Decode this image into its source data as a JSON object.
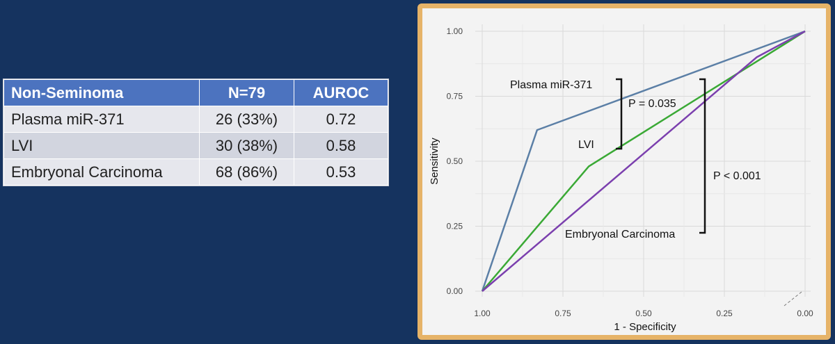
{
  "table": {
    "headers": [
      "Non-Seminoma",
      "N=79",
      "AUROC"
    ],
    "rows": [
      [
        "Plasma miR-371",
        "26 (33%)",
        "0.72"
      ],
      [
        "LVI",
        "30 (38%)",
        "0.58"
      ],
      [
        "Embryonal Carcinoma",
        "68 (86%)",
        "0.53"
      ]
    ]
  },
  "chart_data": {
    "type": "line",
    "title": "",
    "xlabel": "1 - Specificity",
    "ylabel": "Sensitivity",
    "x_reversed": true,
    "xlim": [
      1.0,
      0.0
    ],
    "ylim": [
      0.0,
      1.0
    ],
    "x_ticks": [
      "1.00",
      "0.75",
      "0.50",
      "0.25",
      "0.00"
    ],
    "y_ticks": [
      "0.00",
      "0.25",
      "0.50",
      "0.75",
      "1.00"
    ],
    "grid": true,
    "series": [
      {
        "name": "Plasma miR-371",
        "color": "#5b7fa6",
        "x": [
          1.0,
          0.83,
          0.0
        ],
        "y": [
          0.0,
          0.62,
          1.0
        ]
      },
      {
        "name": "LVI",
        "color": "#3aa935",
        "x": [
          1.0,
          0.67,
          0.0
        ],
        "y": [
          0.0,
          0.48,
          1.0
        ]
      },
      {
        "name": "Embryonal Carcinoma",
        "color": "#7b3fae",
        "x": [
          1.0,
          0.15,
          0.0
        ],
        "y": [
          0.0,
          0.9,
          1.0
        ]
      }
    ],
    "annotations": [
      "P = 0.035",
      "P < 0.001"
    ]
  }
}
